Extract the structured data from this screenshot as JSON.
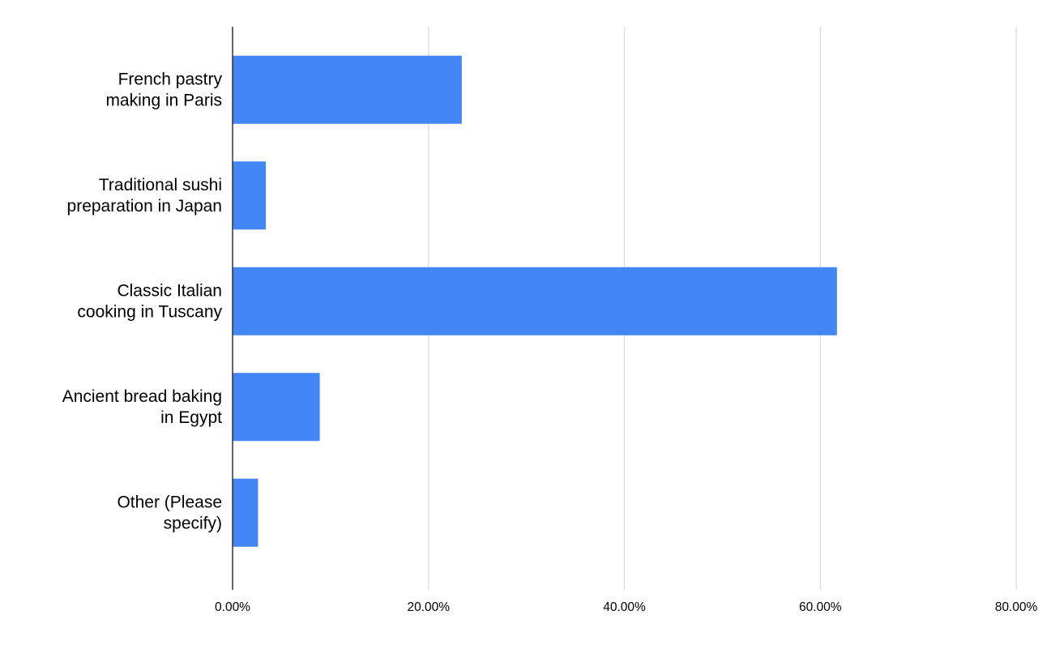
{
  "chart_data": {
    "type": "bar",
    "orientation": "horizontal",
    "categories": [
      [
        "French pastry",
        "making in Paris"
      ],
      [
        "Traditional sushi",
        "preparation in Japan"
      ],
      [
        "Classic Italian",
        "cooking in Tuscany"
      ],
      [
        "Ancient bread baking",
        "in Egypt"
      ],
      [
        "Other (Please",
        "specify)"
      ]
    ],
    "values": [
      23.4,
      3.4,
      61.7,
      8.9,
      2.6
    ],
    "xlim": [
      0,
      80
    ],
    "x_ticks": [
      0,
      20,
      40,
      60,
      80
    ],
    "x_tick_labels": [
      "0.00%",
      "20.00%",
      "40.00%",
      "60.00%",
      "80.00%"
    ],
    "grid": "vertical",
    "legend": "none",
    "title": "",
    "xlabel": "",
    "ylabel": "",
    "colors": {
      "bar": "#4285f4",
      "grid": "#d9d9d9",
      "axis": "#333333",
      "text": "#000000"
    }
  }
}
